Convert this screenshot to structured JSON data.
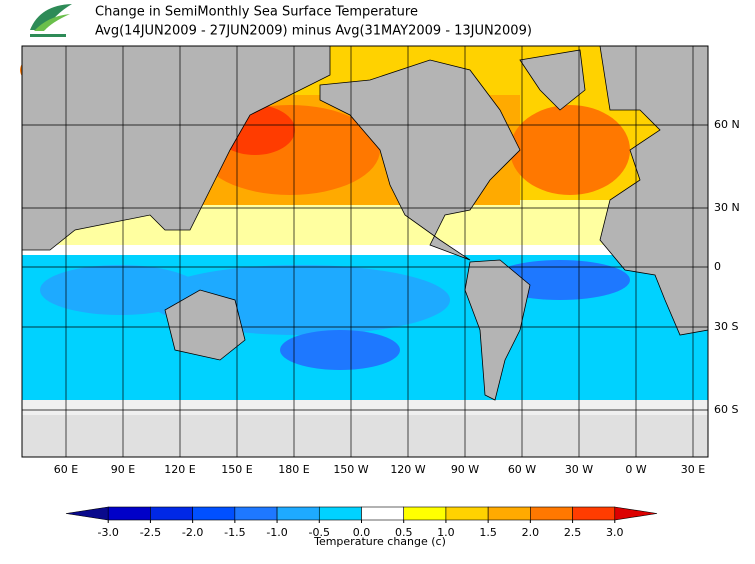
{
  "header": {
    "title": "Change in SemiMonthly Sea Surface Temperature",
    "subtitle": "Avg(14JUN2009 - 27JUN2009) minus Avg(31MAY2009 - 13JUN2009)"
  },
  "map": {
    "lon_labels": [
      "60 E",
      "90 E",
      "120 E",
      "150 E",
      "180 E",
      "150 W",
      "120 W",
      "90 W",
      "60 W",
      "30 W",
      "0 W",
      "30 E"
    ],
    "lat_labels": [
      "60 N",
      "30 N",
      "0",
      "30 S",
      "60 S"
    ]
  },
  "colorbar": {
    "range": [
      -3.5,
      3.5
    ],
    "ticks": [
      {
        "value": -3,
        "label": "-3.0"
      },
      {
        "value": -2.5,
        "label": "-2.5"
      },
      {
        "value": -2,
        "label": "-2.0"
      },
      {
        "value": -1.5,
        "label": "-1.5"
      },
      {
        "value": -1,
        "label": "-1.0"
      },
      {
        "value": -0.5,
        "label": "-0.5"
      },
      {
        "value": 0,
        "label": "0.0"
      },
      {
        "value": 0.5,
        "label": "0.5"
      },
      {
        "value": 1,
        "label": "1.0"
      },
      {
        "value": 1.5,
        "label": "1.5"
      },
      {
        "value": 2,
        "label": "2.0"
      },
      {
        "value": 2.5,
        "label": "2.5"
      },
      {
        "value": 3,
        "label": "3.0"
      }
    ],
    "colors": [
      "#0a0a8c",
      "#0000c8",
      "#0028e6",
      "#0050ff",
      "#1e78ff",
      "#1eaaff",
      "#00d2ff",
      "#ffffff",
      "#ffff00",
      "#ffd200",
      "#ffaa00",
      "#ff7800",
      "#ff3c00",
      "#dc0000"
    ],
    "label": "Temperature change  (c)"
  }
}
